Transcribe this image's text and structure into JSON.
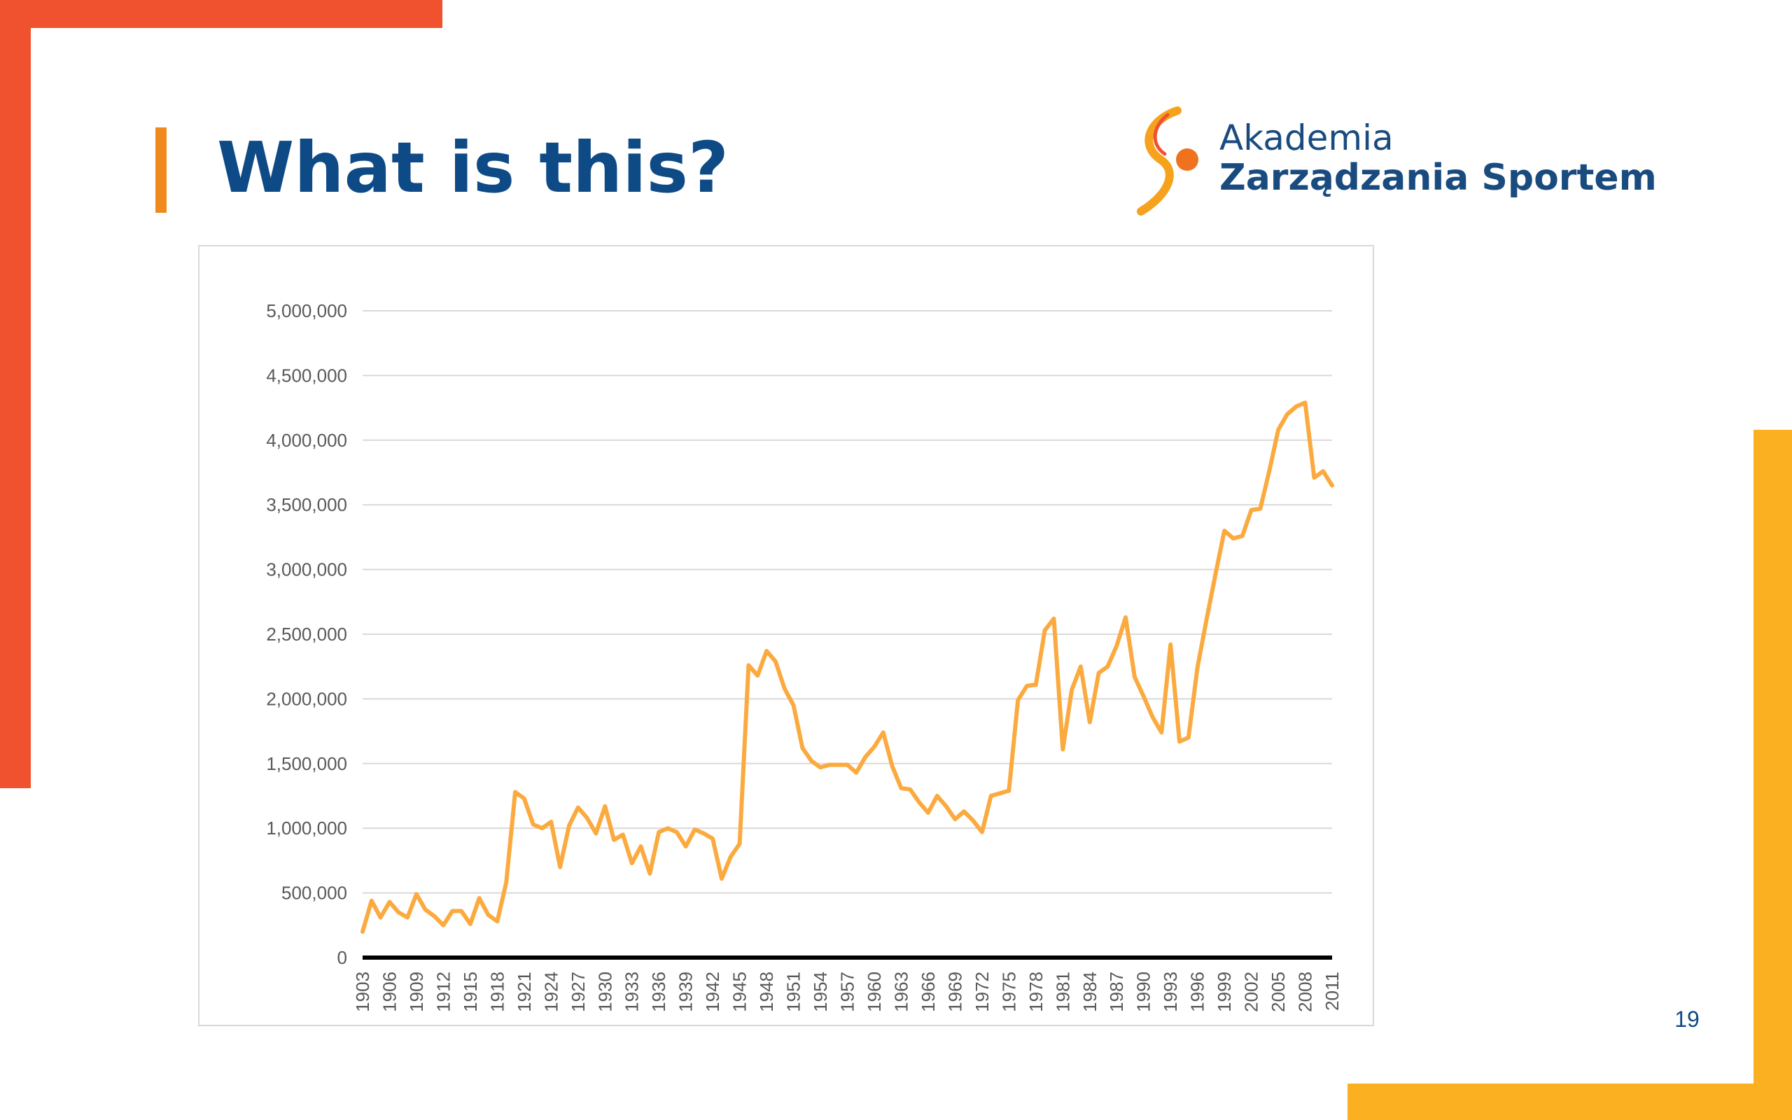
{
  "slide": {
    "title": "What is this?",
    "page_number": "19"
  },
  "logo": {
    "line1": "Akademia",
    "line2": "Zarządzania Sportem",
    "icon": "akademia-s-logo-icon"
  },
  "colors": {
    "series": "#fbaa3f",
    "title": "#0e4a86",
    "accent_red": "#f0512f",
    "accent_yellow": "#fbb022"
  },
  "chart_data": {
    "type": "line",
    "title": "",
    "xlabel": "",
    "ylabel": "",
    "ylim": [
      0,
      5000000
    ],
    "y_ticks": [
      "0",
      "500,000",
      "1,000,000",
      "1,500,000",
      "2,000,000",
      "2,500,000",
      "3,000,000",
      "3,500,000",
      "4,000,000",
      "4,500,000",
      "5,000,000"
    ],
    "x_tick_labels": [
      "1903",
      "1906",
      "1909",
      "1912",
      "1915",
      "1918",
      "1921",
      "1924",
      "1927",
      "1930",
      "1933",
      "1936",
      "1939",
      "1942",
      "1945",
      "1948",
      "1951",
      "1954",
      "1957",
      "1960",
      "1963",
      "1966",
      "1969",
      "1972",
      "1975",
      "1978",
      "1981",
      "1984",
      "1987",
      "1990",
      "1993",
      "1996",
      "1999",
      "2002",
      "2005",
      "2008",
      "2011"
    ],
    "grid": true,
    "legend": "none",
    "x": [
      1903,
      1904,
      1905,
      1906,
      1907,
      1908,
      1909,
      1910,
      1911,
      1912,
      1913,
      1914,
      1915,
      1916,
      1917,
      1918,
      1919,
      1920,
      1921,
      1922,
      1923,
      1924,
      1925,
      1926,
      1927,
      1928,
      1929,
      1930,
      1931,
      1932,
      1933,
      1934,
      1935,
      1936,
      1937,
      1938,
      1939,
      1940,
      1941,
      1942,
      1943,
      1944,
      1945,
      1946,
      1947,
      1948,
      1949,
      1950,
      1951,
      1952,
      1953,
      1954,
      1955,
      1956,
      1957,
      1958,
      1959,
      1960,
      1961,
      1962,
      1963,
      1964,
      1965,
      1966,
      1967,
      1968,
      1969,
      1970,
      1971,
      1972,
      1973,
      1974,
      1975,
      1976,
      1977,
      1978,
      1979,
      1980,
      1981,
      1982,
      1983,
      1984,
      1985,
      1986,
      1987,
      1988,
      1989,
      1990,
      1991,
      1992,
      1993,
      1994,
      1995,
      1996,
      1997,
      1998,
      1999,
      2000,
      2001,
      2002,
      2003,
      2004,
      2005,
      2006,
      2007,
      2008,
      2009,
      2010,
      2011
    ],
    "series": [
      {
        "values": [
          200000,
          440000,
          310000,
          430000,
          350000,
          310000,
          490000,
          370000,
          320000,
          250000,
          360000,
          360000,
          260000,
          460000,
          330000,
          280000,
          580000,
          1280000,
          1230000,
          1030000,
          1000000,
          1050000,
          700000,
          1020000,
          1160000,
          1080000,
          960000,
          1170000,
          910000,
          950000,
          730000,
          860000,
          650000,
          970000,
          1000000,
          970000,
          860000,
          990000,
          960000,
          920000,
          610000,
          780000,
          880000,
          2260000,
          2180000,
          2370000,
          2290000,
          2080000,
          1950000,
          1620000,
          1520000,
          1470000,
          1490000,
          1490000,
          1490000,
          1430000,
          1550000,
          1630000,
          1740000,
          1480000,
          1310000,
          1300000,
          1200000,
          1120000,
          1250000,
          1170000,
          1070000,
          1130000,
          1060000,
          970000,
          1250000,
          1270000,
          1290000,
          1990000,
          2100000,
          2110000,
          2530000,
          2620000,
          1610000,
          2070000,
          2250000,
          1820000,
          2200000,
          2250000,
          2410000,
          2630000,
          2170000,
          2020000,
          1860000,
          1740000,
          2420000,
          1670000,
          1700000,
          2240000,
          2610000,
          2960000,
          3300000,
          3240000,
          3260000,
          3460000,
          3470000,
          3760000,
          4080000,
          4200000,
          4260000,
          4290000,
          3710000,
          3760000,
          3650000
        ]
      }
    ]
  }
}
